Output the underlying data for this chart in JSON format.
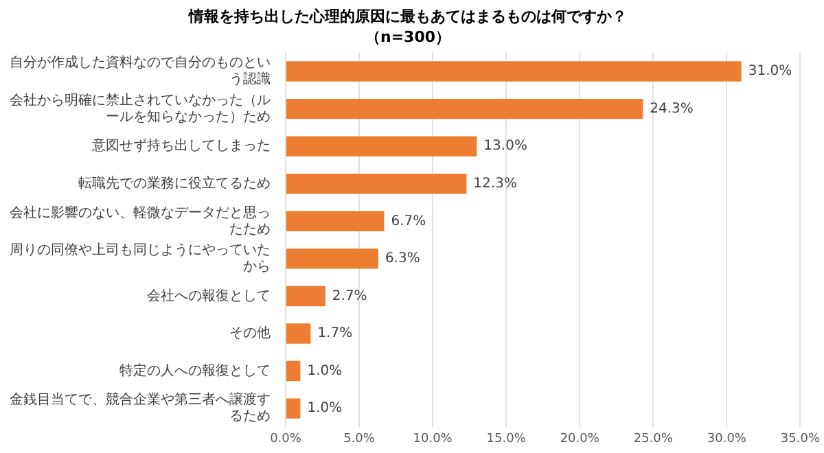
{
  "chart_data": {
    "type": "bar",
    "orientation": "horizontal",
    "title": "情報を持ち出した心理的原因に最もあてはまるものは何ですか？",
    "subtitle": "（n=300）",
    "categories": [
      "自分が作成した資料なので自分のものという認識",
      "会社から明確に禁止されていなかった（ルールを知らなかった）ため",
      "意図せず持ち出してしまった",
      "転職先での業務に役立てるため",
      "会社に影響のない、軽微なデータだと思ったため",
      "周りの同僚や上司も同じようにやっていたから",
      "会社への報復として",
      "その他",
      "特定の人への報復として",
      "金銭目当てで、競合企業や第三者へ譲渡するため"
    ],
    "values": [
      31.0,
      24.3,
      13.0,
      12.3,
      6.7,
      6.3,
      2.7,
      1.7,
      1.0,
      1.0
    ],
    "value_labels": [
      "31.0%",
      "24.3%",
      "13.0%",
      "12.3%",
      "6.7%",
      "6.3%",
      "2.7%",
      "1.7%",
      "1.0%",
      "1.0%"
    ],
    "color": "#ed7d31",
    "xlim": [
      0,
      35
    ],
    "xticks": [
      {
        "value": 0,
        "label": "0.0%"
      },
      {
        "value": 5,
        "label": "5.0%"
      },
      {
        "value": 10,
        "label": "10.0%"
      },
      {
        "value": 15,
        "label": "15.0%"
      },
      {
        "value": 20,
        "label": "20.0%"
      },
      {
        "value": 25,
        "label": "25.0%"
      },
      {
        "value": 30,
        "label": "30.0%"
      },
      {
        "value": 35,
        "label": "35.0%"
      }
    ],
    "grid": "x",
    "legend": false
  }
}
